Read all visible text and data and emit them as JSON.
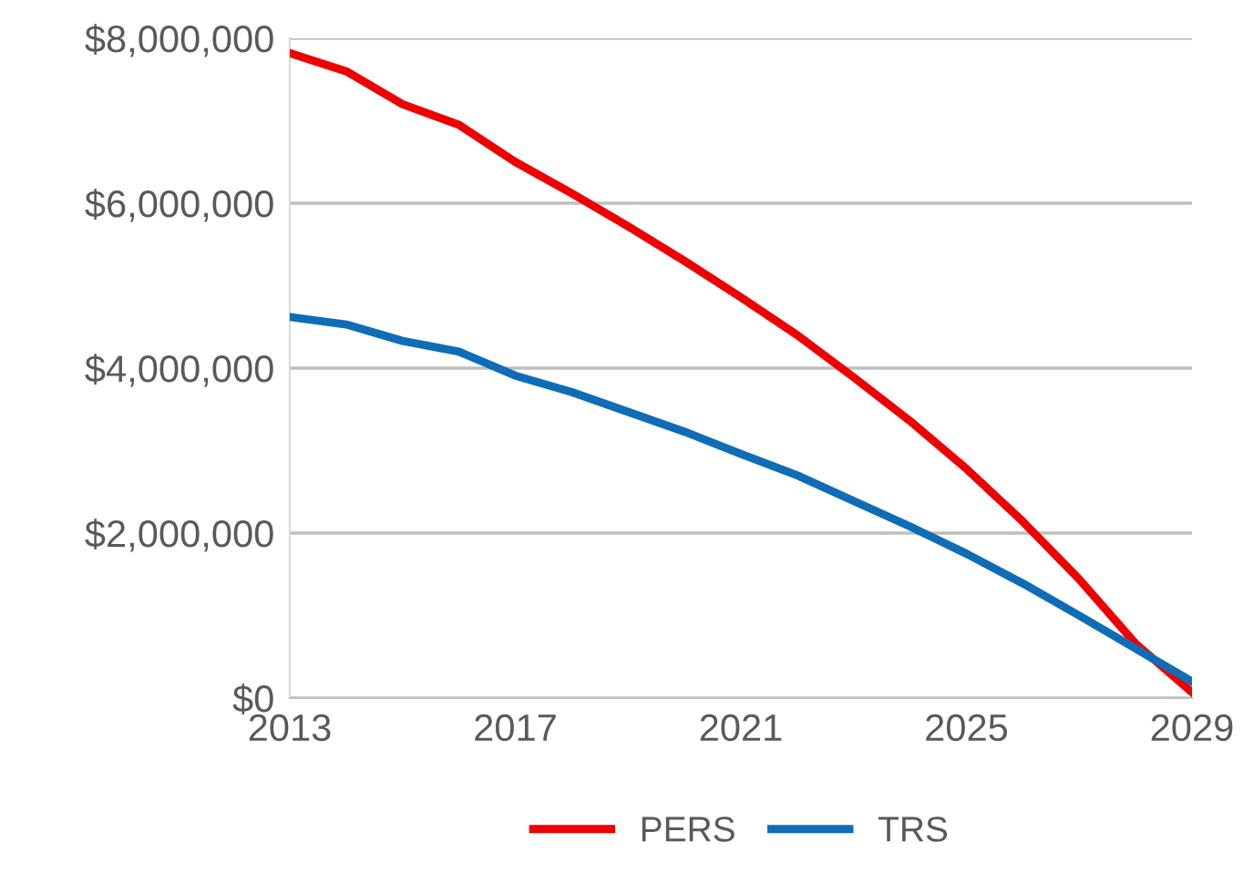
{
  "chart_data": {
    "type": "line",
    "x": [
      2013,
      2014,
      2015,
      2016,
      2017,
      2018,
      2019,
      2020,
      2021,
      2022,
      2023,
      2024,
      2025,
      2026,
      2027,
      2028,
      2029
    ],
    "series": [
      {
        "name": "PERS",
        "color": "#ee0000",
        "values": [
          7820000,
          7600000,
          7200000,
          6950000,
          6500000,
          6120000,
          5720000,
          5300000,
          4860000,
          4400000,
          3890000,
          3360000,
          2780000,
          2140000,
          1440000,
          660000,
          70000
        ]
      },
      {
        "name": "TRS",
        "color": "#0f6cb6",
        "values": [
          4620000,
          4530000,
          4330000,
          4200000,
          3910000,
          3710000,
          3470000,
          3230000,
          2960000,
          2700000,
          2390000,
          2080000,
          1750000,
          1390000,
          1000000,
          600000,
          200000
        ]
      }
    ],
    "xlim": [
      2013,
      2029
    ],
    "xticks": [
      2013,
      2017,
      2021,
      2025,
      2029
    ],
    "ylim": [
      0,
      8000000
    ],
    "yticks": [
      {
        "value": 0,
        "label": "$0"
      },
      {
        "value": 2000000,
        "label": "$2,000,000"
      },
      {
        "value": 4000000,
        "label": "$4,000,000"
      },
      {
        "value": 6000000,
        "label": "$6,000,000"
      },
      {
        "value": 8000000,
        "label": "$8,000,000"
      }
    ],
    "grid": "y",
    "legend": "bottom",
    "marker": "none",
    "line_style": "solid"
  }
}
